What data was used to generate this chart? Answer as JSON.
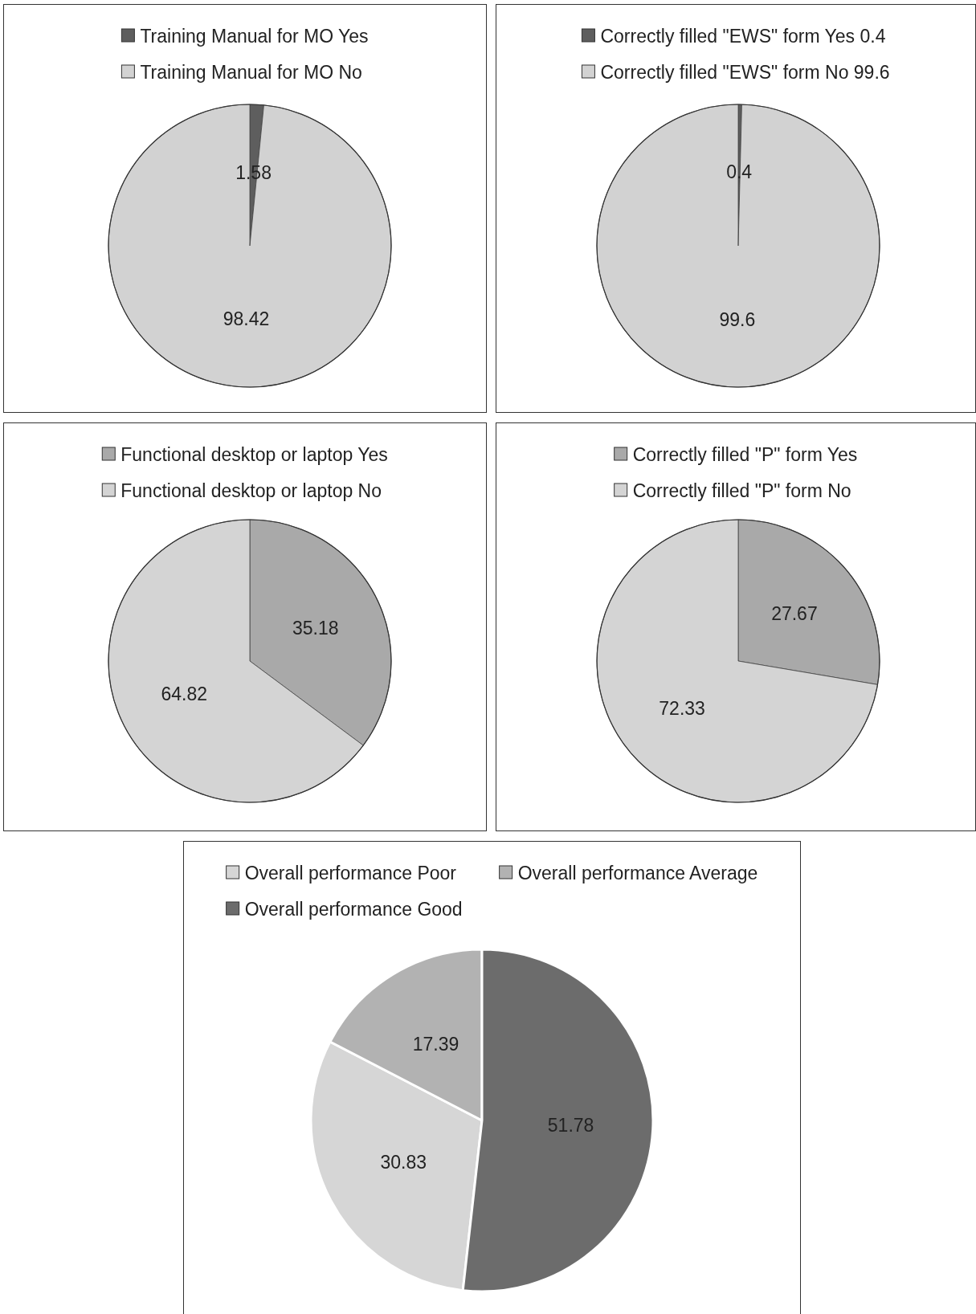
{
  "chart_data": [
    {
      "type": "pie",
      "categories": [
        "Training Manual for MO Yes",
        "Training Manual for MO No"
      ],
      "values": [
        1.58,
        98.42
      ],
      "colors": [
        "#5e5e5e",
        "#d2d2d2"
      ],
      "data_labels": true,
      "legend": "top"
    },
    {
      "type": "pie",
      "categories": [
        "Correctly filled \"EWS\" form Yes 0.4",
        "Correctly filled \"EWS\" form No 99.6"
      ],
      "values": [
        0.4,
        99.6
      ],
      "colors": [
        "#5e5e5e",
        "#d2d2d2"
      ],
      "data_labels": true,
      "legend": "top"
    },
    {
      "type": "pie",
      "categories": [
        "Functional desktop or laptop Yes",
        "Functional desktop or laptop No"
      ],
      "values": [
        35.18,
        64.82
      ],
      "colors": [
        "#a9a9a9",
        "#d4d4d4"
      ],
      "data_labels": true,
      "legend": "top"
    },
    {
      "type": "pie",
      "categories": [
        "Correctly filled \"P\" form Yes",
        "Correctly filled \"P\" form No"
      ],
      "values": [
        27.67,
        72.33
      ],
      "colors": [
        "#a9a9a9",
        "#d4d4d4"
      ],
      "data_labels": true,
      "legend": "top"
    },
    {
      "type": "pie",
      "categories": [
        "Overall performance Poor",
        "Overall performance Average",
        "Overall performance Good"
      ],
      "values": [
        30.83,
        17.39,
        51.78
      ],
      "colors": [
        "#d6d6d6",
        "#b2b2b2",
        "#6c6c6c"
      ],
      "data_labels": true,
      "legend": "top"
    }
  ]
}
